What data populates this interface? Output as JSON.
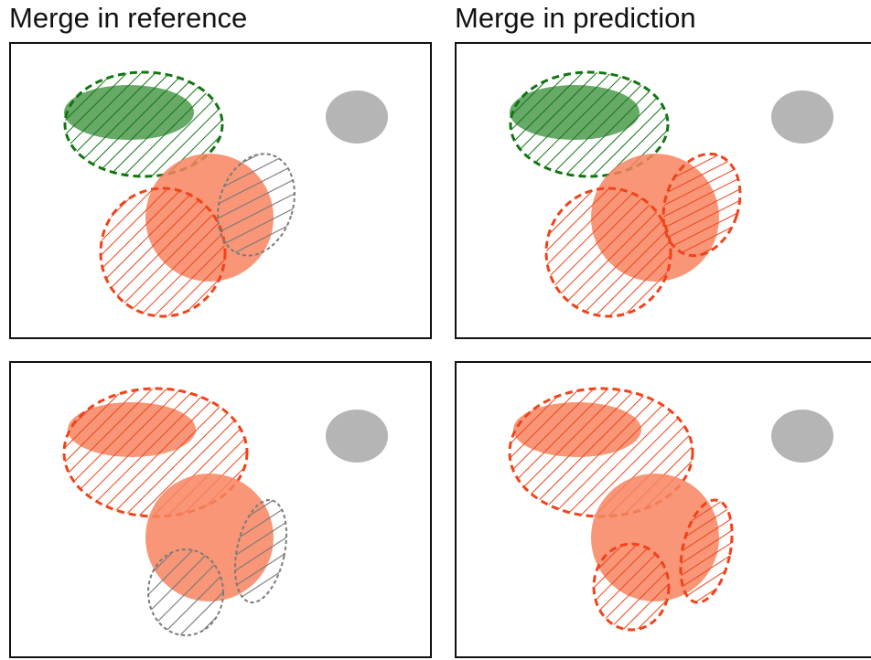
{
  "titles": {
    "left": "Merge in reference",
    "right": "Merge in prediction"
  },
  "colors": {
    "green_fill": "#4c9a4c",
    "green_edge": "#127512",
    "red_fill": "#f7845f",
    "red_edge": "#f0431a",
    "gray_fill": "#b5b5b5",
    "gray_edge": "#7a7a7a",
    "frame": "#111111"
  },
  "panels": [
    {
      "id": "top-left",
      "column": "reference",
      "row": "top"
    },
    {
      "id": "top-right",
      "column": "prediction",
      "row": "top"
    },
    {
      "id": "bottom-left",
      "column": "reference",
      "row": "bottom"
    },
    {
      "id": "bottom-right",
      "column": "prediction",
      "row": "bottom"
    }
  ]
}
